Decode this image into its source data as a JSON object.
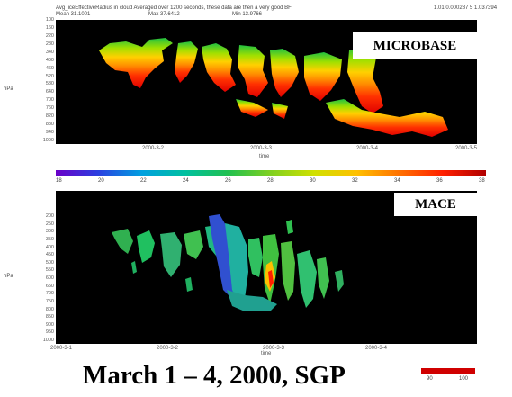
{
  "header": {
    "line1": "Avg_iceEffectiveRadius in cloud Averaged over 1200 seconds, these data are then a very good BF",
    "line1_right": "1.01 0.000287 5 1.037394",
    "mean": "Mean 31.1001",
    "max": "Max 37.6412",
    "min": "Min 13.9766"
  },
  "top_panel": {
    "label": "MICROBASE",
    "y_axis_title": "hPa",
    "y_ticks": [
      "100",
      "160",
      "220",
      "280",
      "340",
      "400",
      "460",
      "520",
      "580",
      "640",
      "700",
      "760",
      "820",
      "880",
      "940",
      "1000"
    ],
    "x_ticks": [
      "2000-3-2",
      "2000-3-3",
      "2000-3-4",
      "2000-3-5"
    ],
    "x_title": "time"
  },
  "colorbar": {
    "ticks": [
      "18",
      "20",
      "22",
      "24",
      "26",
      "28",
      "30",
      "32",
      "34",
      "36",
      "38"
    ],
    "colors": [
      "#6a00c8",
      "#2a40e0",
      "#00a0e0",
      "#00c0a0",
      "#20c050",
      "#80d020",
      "#d0e000",
      "#ffc000",
      "#ff7000",
      "#ff2000",
      "#b00000"
    ]
  },
  "bottom_panel": {
    "label": "MACE",
    "y_axis_title": "hPa",
    "y_ticks": [
      "200",
      "250",
      "300",
      "350",
      "400",
      "450",
      "500",
      "550",
      "600",
      "650",
      "700",
      "750",
      "800",
      "850",
      "900",
      "950",
      "1000"
    ],
    "x_ticks": [
      "2000-3-1",
      "2000-3-2",
      "2000-3-3",
      "2000-3-4"
    ],
    "x_title": "time"
  },
  "caption": "March 1 – 4, 2000, SGP",
  "small_colorbar": {
    "low": "90",
    "high": "100",
    "color": "#d00000"
  }
}
